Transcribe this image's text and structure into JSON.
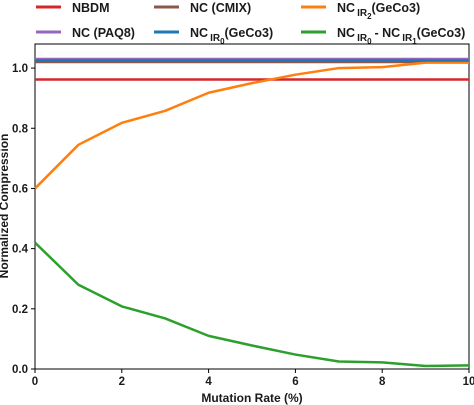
{
  "chart_data": {
    "type": "line",
    "title": "",
    "xlabel": "Mutation Rate (%)",
    "ylabel": "Normalized Compression",
    "xlim": [
      0,
      10
    ],
    "ylim": [
      0,
      1.08
    ],
    "x_ticks": [
      "0",
      "2",
      "4",
      "6",
      "8",
      "10"
    ],
    "y_ticks": [
      "0.0",
      "0.2",
      "0.4",
      "0.6",
      "0.8",
      "1.0"
    ],
    "grid": false,
    "legend_position": "top",
    "x": [
      0,
      1,
      2,
      3,
      4,
      5,
      6,
      7,
      8,
      9,
      10
    ],
    "series": [
      {
        "name": "NBDM",
        "legend_label": "NBDM",
        "color": "#d62728",
        "values": [
          0.962,
          0.962,
          0.962,
          0.962,
          0.962,
          0.962,
          0.962,
          0.962,
          0.962,
          0.962,
          0.962
        ]
      },
      {
        "name": "NC (CMIX)",
        "legend_label": "NC (CMIX)",
        "color": "#8c564b",
        "values": [
          1.02,
          1.02,
          1.02,
          1.02,
          1.02,
          1.02,
          1.02,
          1.02,
          1.02,
          1.02,
          1.02
        ]
      },
      {
        "name": "NC IR2 (GeCo3)",
        "legend_label": "NC",
        "legend_sub": "IR",
        "legend_subsub": "2",
        "legend_suffix": "(GeCo3)",
        "color": "#ff7f0e",
        "values": [
          0.6,
          0.745,
          0.818,
          0.858,
          0.918,
          0.95,
          0.978,
          1.0,
          1.003,
          1.018,
          1.018
        ]
      },
      {
        "name": "NC (PAQ8)",
        "legend_label": "NC (PAQ8)",
        "color": "#9467bd",
        "values": [
          1.03,
          1.03,
          1.03,
          1.03,
          1.03,
          1.03,
          1.03,
          1.03,
          1.03,
          1.03,
          1.03
        ]
      },
      {
        "name": "NC IR0 (GeCo3)",
        "legend_label": "NC",
        "legend_sub": "IR",
        "legend_subsub": "0",
        "legend_suffix": "(GeCo3)",
        "color": "#1f77b4",
        "values": [
          1.025,
          1.025,
          1.025,
          1.025,
          1.025,
          1.025,
          1.025,
          1.025,
          1.025,
          1.025,
          1.025
        ]
      },
      {
        "name": "NC IR0 - NC IR1 (GeCo3)",
        "legend_label": "NC",
        "legend_sub": "IR",
        "legend_subsub": "0",
        "legend_mid": "- NC",
        "legend_sub2": "IR",
        "legend_subsub2": "1",
        "legend_suffix": "(GeCo3)",
        "color": "#2ca02c",
        "values": [
          0.42,
          0.28,
          0.208,
          0.168,
          0.11,
          0.078,
          0.048,
          0.025,
          0.022,
          0.01,
          0.012
        ]
      }
    ]
  }
}
